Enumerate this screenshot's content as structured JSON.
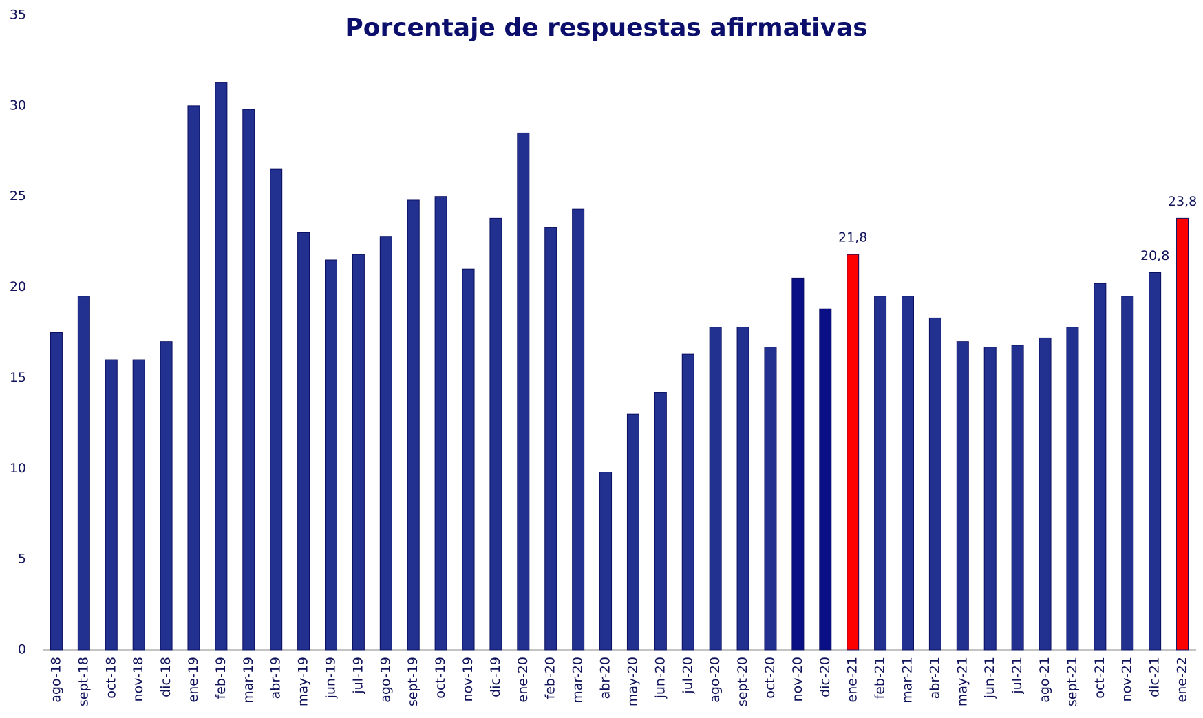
{
  "chart_data": {
    "type": "bar",
    "title": "Porcentaje de respuestas afirmativas",
    "categories": [
      "ago-18",
      "sept-18",
      "oct-18",
      "nov-18",
      "dic-18",
      "ene-19",
      "feb-19",
      "mar-19",
      "abr-19",
      "may-19",
      "jun-19",
      "jul-19",
      "ago-19",
      "sept-19",
      "oct-19",
      "nov-19",
      "dic-19",
      "ene-20",
      "feb-20",
      "mar-20",
      "abr-20",
      "may-20",
      "jun-20",
      "jul-20",
      "ago-20",
      "sept-20",
      "oct-20",
      "nov-20",
      "dic-20",
      "ene-21",
      "feb-21",
      "mar-21",
      "abr-21",
      "may-21",
      "jun-21",
      "jul-21",
      "ago-21",
      "sept-21",
      "oct-21",
      "nov-21",
      "dic-21",
      "ene-22"
    ],
    "values": [
      17.5,
      19.5,
      16.0,
      16.0,
      17.0,
      30.0,
      31.3,
      29.8,
      26.5,
      23.0,
      21.5,
      21.8,
      22.8,
      24.8,
      25.0,
      21.0,
      23.8,
      28.5,
      23.3,
      24.3,
      9.8,
      13.0,
      14.2,
      16.3,
      17.8,
      17.8,
      16.7,
      20.5,
      18.8,
      21.8,
      19.5,
      19.5,
      18.3,
      17.0,
      16.7,
      16.8,
      17.2,
      17.8,
      20.2,
      19.5,
      20.8,
      23.8
    ],
    "value_labels": [
      null,
      null,
      null,
      null,
      null,
      null,
      null,
      null,
      null,
      null,
      null,
      null,
      null,
      null,
      null,
      null,
      null,
      null,
      null,
      null,
      null,
      null,
      null,
      null,
      null,
      null,
      null,
      null,
      null,
      "21,8",
      null,
      null,
      null,
      null,
      null,
      null,
      null,
      null,
      null,
      null,
      "20,8",
      "23,8"
    ],
    "colors": [
      "#22318f",
      "#22318f",
      "#22318f",
      "#22318f",
      "#22318f",
      "#22318f",
      "#22318f",
      "#22318f",
      "#22318f",
      "#22318f",
      "#22318f",
      "#22318f",
      "#22318f",
      "#22318f",
      "#22318f",
      "#22318f",
      "#22318f",
      "#22318f",
      "#22318f",
      "#22318f",
      "#22318f",
      "#22318f",
      "#22318f",
      "#22318f",
      "#22318f",
      "#22318f",
      "#22318f",
      "#0a0f85",
      "#0a0f85",
      "#ff0000",
      "#22318f",
      "#22318f",
      "#22318f",
      "#22318f",
      "#22318f",
      "#22318f",
      "#22318f",
      "#22318f",
      "#22318f",
      "#22318f",
      "#22318f",
      "#ff0000"
    ],
    "ylim": [
      0,
      35
    ],
    "yticks": [
      0,
      5,
      10,
      15,
      20,
      25,
      30,
      35
    ],
    "grid": false
  }
}
